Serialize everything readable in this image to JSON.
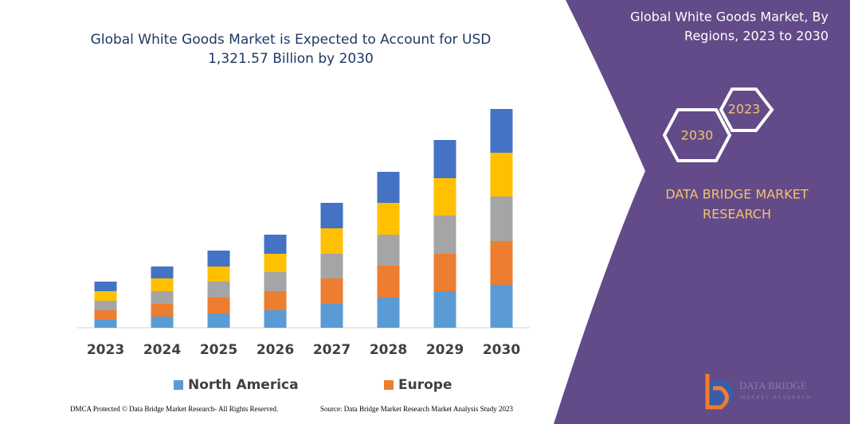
{
  "chart_data": {
    "type": "bar",
    "stacked": true,
    "title": [
      "Global White Goods Market is Expected to Account for USD",
      "1,321.57 Billion by 2030"
    ],
    "categories": [
      "2023",
      "2024",
      "2025",
      "2026",
      "2027",
      "2028",
      "2029",
      "2030"
    ],
    "series": [
      {
        "name": "North America",
        "color": "#5b9bd5",
        "values": [
          10,
          14,
          18,
          22,
          30,
          38,
          46,
          54
        ]
      },
      {
        "name": "Europe",
        "color": "#ed7d31",
        "values": [
          12,
          16,
          20,
          24,
          32,
          40,
          47,
          55
        ]
      },
      {
        "name": null,
        "color": "#a5a5a5",
        "values": [
          12,
          16,
          20,
          24,
          31,
          39,
          48,
          56
        ]
      },
      {
        "name": null,
        "color": "#ffc000",
        "values": [
          12,
          16,
          19,
          23,
          32,
          40,
          47,
          55
        ]
      },
      {
        "name": null,
        "color": "#4472c4",
        "values": [
          12,
          15,
          20,
          24,
          32,
          39,
          48,
          55
        ]
      }
    ]
  },
  "panel": {
    "title": [
      "Global White Goods Market, By",
      "Regions, 2023 to 2030"
    ],
    "hexagons": [
      "2023",
      "2030"
    ],
    "brand": [
      "DATA BRIDGE MARKET",
      "RESEARCH"
    ],
    "logo": [
      "DATA BRIDGE",
      "MARKET RESEARCH"
    ]
  },
  "footer": {
    "left": "DMCA Protected © Data Bridge Market Research- All Rights Reserved.",
    "right": "Source: Data Bridge Market Research Market Analysis Study 2023"
  }
}
